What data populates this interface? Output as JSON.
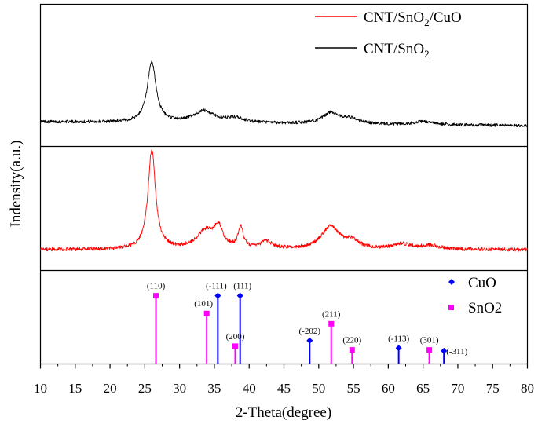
{
  "chart_data": {
    "type": "line",
    "xlabel": "2-Theta(degree)",
    "ylabel": "Indensity(a.u.)",
    "xlim": [
      10,
      80
    ],
    "xticks": [
      10,
      15,
      20,
      25,
      30,
      35,
      40,
      45,
      50,
      55,
      60,
      65,
      70,
      75,
      80
    ],
    "grid": false,
    "panels": [
      {
        "name": "top",
        "series": [
          {
            "name": "CNT/SnO2",
            "legend_main": "CNT/SnO",
            "legend_sub": "2",
            "color": "#000000",
            "baseline": 0.05,
            "slope": -0.05,
            "noise": 0.04,
            "peaks": [
              {
                "x": 26.0,
                "height": 0.78,
                "width": 0.75
              },
              {
                "x": 33.5,
                "height": 0.15,
                "width": 1.8
              },
              {
                "x": 38.0,
                "height": 0.06,
                "width": 1.5
              },
              {
                "x": 51.8,
                "height": 0.14,
                "width": 1.4
              },
              {
                "x": 54.5,
                "height": 0.06,
                "width": 1.5
              },
              {
                "x": 65.0,
                "height": 0.04,
                "width": 1.5
              }
            ]
          }
        ]
      },
      {
        "name": "middle",
        "series": [
          {
            "name": "CNT/SnO2/CuO",
            "legend_main": "CNT/SnO",
            "legend_sub": "2",
            "legend_tail": "/CuO",
            "color": "#ff0000",
            "baseline": 0.03,
            "slope": 0.0,
            "noise": 0.035,
            "peaks": [
              {
                "x": 26.0,
                "height": 0.97,
                "width": 0.65
              },
              {
                "x": 33.8,
                "height": 0.18,
                "width": 1.6
              },
              {
                "x": 35.6,
                "height": 0.18,
                "width": 0.7
              },
              {
                "x": 38.8,
                "height": 0.2,
                "width": 0.45
              },
              {
                "x": 42.5,
                "height": 0.07,
                "width": 1.0
              },
              {
                "x": 51.7,
                "height": 0.22,
                "width": 1.6
              },
              {
                "x": 54.8,
                "height": 0.07,
                "width": 1.2
              },
              {
                "x": 62.0,
                "height": 0.05,
                "width": 1.5
              },
              {
                "x": 66.0,
                "height": 0.04,
                "width": 1.5
              }
            ]
          }
        ]
      },
      {
        "name": "bottom",
        "type": "stick",
        "ylim": [
          0,
          1
        ],
        "series": [
          {
            "name": "CuO",
            "color": "#0000ff",
            "marker": "diamond",
            "sticks": [
              {
                "x": 35.5,
                "y": 0.73,
                "label": "(-111)"
              },
              {
                "x": 38.7,
                "y": 0.73,
                "label": "(111)"
              },
              {
                "x": 48.7,
                "y": 0.25,
                "label": "(-202)"
              },
              {
                "x": 61.5,
                "y": 0.17,
                "label": "(-113)"
              },
              {
                "x": 68.0,
                "y": 0.14,
                "label": "(-311)"
              }
            ]
          },
          {
            "name": "SnO2",
            "color": "#ff00ff",
            "marker": "square",
            "sticks": [
              {
                "x": 26.6,
                "y": 0.73,
                "label": "(110)"
              },
              {
                "x": 33.9,
                "y": 0.54,
                "label": "(101)"
              },
              {
                "x": 38.0,
                "y": 0.19,
                "label": "(200)"
              },
              {
                "x": 51.8,
                "y": 0.43,
                "label": "(211)"
              },
              {
                "x": 54.8,
                "y": 0.15,
                "label": "(220)"
              },
              {
                "x": 65.9,
                "y": 0.15,
                "label": "(301)"
              }
            ]
          }
        ]
      }
    ]
  }
}
